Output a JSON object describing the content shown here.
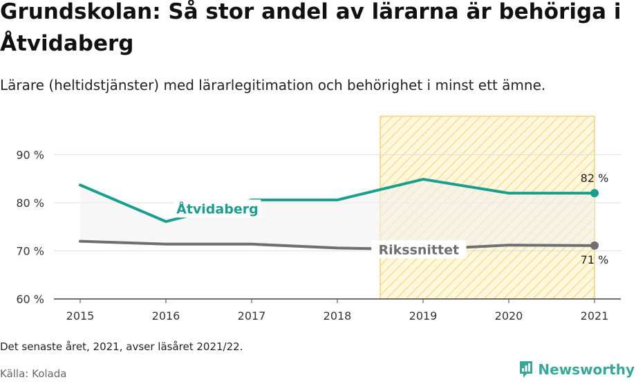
{
  "header": {
    "title": "Grundskolan: Så stor andel av lärarna är behöriga i Åtvidaberg",
    "subtitle": "Lärare (heltidstjänster) med lärarlegitimation och behörighet i minst ett ämne."
  },
  "footer": {
    "note": "Det senaste året, 2021, avser läsåret 2021/22.",
    "source": "Källa: Kolada",
    "brand": "Newsworthy"
  },
  "colors": {
    "primary": "#1a9e8e",
    "national": "#6e6e73",
    "highlight_fill": "#fff6d6",
    "highlight_stripe": "#f5d67a",
    "band": "#f3f3f3"
  },
  "chart_data": {
    "type": "line",
    "x": [
      2015,
      2016,
      2017,
      2018,
      2019,
      2020,
      2021
    ],
    "series": [
      {
        "name": "Åtvidaberg",
        "values": [
          83.7,
          76.1,
          80.6,
          80.6,
          84.9,
          82.0,
          82.0
        ],
        "color": "#1a9e8e",
        "end_label": "82 %"
      },
      {
        "name": "Rikssnittet",
        "values": [
          72.0,
          71.4,
          71.4,
          70.6,
          70.3,
          71.2,
          71.1
        ],
        "color": "#6e6e73",
        "end_label": "71 %"
      }
    ],
    "ylim": [
      60,
      98
    ],
    "yticks": [
      60,
      70,
      80,
      90
    ],
    "ytick_labels": [
      "60 %",
      "70 %",
      "80 %",
      "90 %"
    ],
    "xtick_labels": [
      "2015",
      "2016",
      "2017",
      "2018",
      "2019",
      "2020",
      "2021"
    ],
    "highlight_range": [
      2018.5,
      2021
    ],
    "grid": true,
    "xlabel": "",
    "ylabel": ""
  }
}
